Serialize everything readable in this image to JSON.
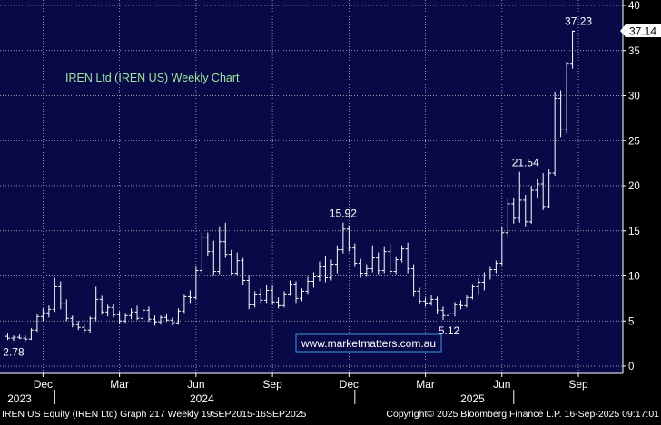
{
  "chart_data": {
    "type": "ohlc",
    "title": "IREN Ltd (IREN US) Weekly Chart",
    "watermark": "www.marketmatters.com.au",
    "footer_left": "IREN US Equity (IREN Ltd) Graph 217  Weekly 19SEP2015-16SEP2025",
    "footer_right": "Copyright© 2025 Bloomberg Finance L.P.    16-Sep-2025 09:17:01",
    "last_price_label": "37.14",
    "y_axis": {
      "min": 0,
      "max": 40,
      "ticks": [
        0,
        5,
        10,
        15,
        20,
        25,
        30,
        35,
        40
      ],
      "side": "right"
    },
    "x_month_labels": [
      {
        "label": "Dec",
        "week": 6
      },
      {
        "label": "Mar",
        "week": 19
      },
      {
        "label": "Jun",
        "week": 32
      },
      {
        "label": "Sep",
        "week": 45
      },
      {
        "label": "Dec",
        "week": 58
      },
      {
        "label": "Mar",
        "week": 71
      },
      {
        "label": "Jun",
        "week": 84
      },
      {
        "label": "Sep",
        "week": 97
      }
    ],
    "x_year_labels": [
      {
        "label": "2023",
        "week": 2
      },
      {
        "label": "2024",
        "week": 33
      },
      {
        "label": "2025",
        "week": 79
      }
    ],
    "year_dividers": [
      8,
      59,
      86
    ],
    "annotations": [
      {
        "text": "2.78",
        "week": 1,
        "value": 2.78,
        "pos": "below"
      },
      {
        "text": "15.92",
        "week": 57,
        "value": 15.92,
        "pos": "above"
      },
      {
        "text": "5.12",
        "week": 75,
        "value": 5.12,
        "pos": "below"
      },
      {
        "text": "21.54",
        "week": 88,
        "value": 21.54,
        "pos": "above"
      },
      {
        "text": "37.23",
        "week": 97,
        "value": 37.23,
        "pos": "above"
      }
    ],
    "colors": {
      "background": "#090947",
      "grid": "#c8c8c8",
      "bars": "#ffffff",
      "title": "#9ee69e",
      "watermark_border": "#3a9ad9",
      "last_price_bg": "#ffffff",
      "axis_area": "#000000"
    },
    "series": [
      {
        "values": [
          [
            3.3,
            3.6,
            2.9,
            3.1
          ],
          [
            3.1,
            3.4,
            2.8,
            3.2
          ],
          [
            3.2,
            3.5,
            3.0,
            3.1
          ],
          [
            3.1,
            3.4,
            2.78,
            3.0
          ],
          [
            3.0,
            4.2,
            2.9,
            4.0
          ],
          [
            4.0,
            5.8,
            3.8,
            5.5
          ],
          [
            5.5,
            6.4,
            5.0,
            5.9
          ],
          [
            5.9,
            6.7,
            5.4,
            6.3
          ],
          [
            6.3,
            9.8,
            6.0,
            8.8
          ],
          [
            8.8,
            9.4,
            6.3,
            6.9
          ],
          [
            6.9,
            7.4,
            5.0,
            5.3
          ],
          [
            5.3,
            5.6,
            4.3,
            4.6
          ],
          [
            4.6,
            5.0,
            4.0,
            4.3
          ],
          [
            4.3,
            4.7,
            3.6,
            4.0
          ],
          [
            4.0,
            5.5,
            3.7,
            5.3
          ],
          [
            5.3,
            8.8,
            5.0,
            7.4
          ],
          [
            7.4,
            7.8,
            5.7,
            6.0
          ],
          [
            6.0,
            6.8,
            5.5,
            6.5
          ],
          [
            6.5,
            6.9,
            5.4,
            5.7
          ],
          [
            5.7,
            6.1,
            4.7,
            5.0
          ],
          [
            5.0,
            5.9,
            4.8,
            5.6
          ],
          [
            5.6,
            6.4,
            5.2,
            6.0
          ],
          [
            6.0,
            6.7,
            5.1,
            5.3
          ],
          [
            5.3,
            6.7,
            5.1,
            6.2
          ],
          [
            6.2,
            6.6,
            4.9,
            5.2
          ],
          [
            5.2,
            5.6,
            4.5,
            4.9
          ],
          [
            4.9,
            5.6,
            4.6,
            5.4
          ],
          [
            5.4,
            5.8,
            4.9,
            5.1
          ],
          [
            5.1,
            5.4,
            4.5,
            4.8
          ],
          [
            4.8,
            6.4,
            4.6,
            6.1
          ],
          [
            6.1,
            8.0,
            5.9,
            7.7
          ],
          [
            7.7,
            8.4,
            7.0,
            7.6
          ],
          [
            7.6,
            11.0,
            7.4,
            10.6
          ],
          [
            10.6,
            14.8,
            10.2,
            14.3
          ],
          [
            14.3,
            14.8,
            12.2,
            12.7
          ],
          [
            12.7,
            13.9,
            10.0,
            10.5
          ],
          [
            10.5,
            15.5,
            10.2,
            13.8
          ],
          [
            13.8,
            15.9,
            12.0,
            12.4
          ],
          [
            12.4,
            12.9,
            10.0,
            10.3
          ],
          [
            10.3,
            12.6,
            10.0,
            11.7
          ],
          [
            11.7,
            12.0,
            9.0,
            9.5
          ],
          [
            9.5,
            10.0,
            6.3,
            6.8
          ],
          [
            6.8,
            8.3,
            6.5,
            8.0
          ],
          [
            8.0,
            8.6,
            7.0,
            7.3
          ],
          [
            7.3,
            9.0,
            7.0,
            8.4
          ],
          [
            8.4,
            8.9,
            6.8,
            7.1
          ],
          [
            7.1,
            7.6,
            6.4,
            6.7
          ],
          [
            6.7,
            8.3,
            6.5,
            8.0
          ],
          [
            8.0,
            9.5,
            7.8,
            9.1
          ],
          [
            9.1,
            9.4,
            7.0,
            7.5
          ],
          [
            7.5,
            8.6,
            7.2,
            8.3
          ],
          [
            8.3,
            9.9,
            8.0,
            9.4
          ],
          [
            9.4,
            10.4,
            8.7,
            9.9
          ],
          [
            9.9,
            11.6,
            9.4,
            11.0
          ],
          [
            11.0,
            12.2,
            9.3,
            9.8
          ],
          [
            9.8,
            11.8,
            9.5,
            11.3
          ],
          [
            11.3,
            13.4,
            10.3,
            12.9
          ],
          [
            12.9,
            15.92,
            12.5,
            15.2
          ],
          [
            15.2,
            15.6,
            12.7,
            13.1
          ],
          [
            13.1,
            13.6,
            11.0,
            11.4
          ],
          [
            11.4,
            11.9,
            9.8,
            10.3
          ],
          [
            10.3,
            11.3,
            9.9,
            10.8
          ],
          [
            10.8,
            13.4,
            10.4,
            12.0
          ],
          [
            12.0,
            12.6,
            10.2,
            10.6
          ],
          [
            10.6,
            13.2,
            10.3,
            12.7
          ],
          [
            12.7,
            13.6,
            10.0,
            10.5
          ],
          [
            10.5,
            12.1,
            10.2,
            11.8
          ],
          [
            11.8,
            13.4,
            11.5,
            13.0
          ],
          [
            13.0,
            13.7,
            10.3,
            10.8
          ],
          [
            10.8,
            11.3,
            7.7,
            8.3
          ],
          [
            8.3,
            8.7,
            6.9,
            7.2
          ],
          [
            7.2,
            7.6,
            6.6,
            7.0
          ],
          [
            7.0,
            7.9,
            6.7,
            7.4
          ],
          [
            7.4,
            7.7,
            5.8,
            6.2
          ],
          [
            6.2,
            6.6,
            5.12,
            5.6
          ],
          [
            5.6,
            6.0,
            5.2,
            5.8
          ],
          [
            5.8,
            7.1,
            5.5,
            6.8
          ],
          [
            6.8,
            7.3,
            6.3,
            6.7
          ],
          [
            6.7,
            7.9,
            6.5,
            7.6
          ],
          [
            7.6,
            9.1,
            7.4,
            8.8
          ],
          [
            8.8,
            9.8,
            8.0,
            9.3
          ],
          [
            9.3,
            10.4,
            8.4,
            10.1
          ],
          [
            10.1,
            11.0,
            9.6,
            10.7
          ],
          [
            10.7,
            11.7,
            10.3,
            11.4
          ],
          [
            11.4,
            15.4,
            11.2,
            14.8
          ],
          [
            14.8,
            18.6,
            14.2,
            18.0
          ],
          [
            18.0,
            18.7,
            15.8,
            16.4
          ],
          [
            16.4,
            21.54,
            15.9,
            18.4
          ],
          [
            18.4,
            19.0,
            15.5,
            16.0
          ],
          [
            16.0,
            20.0,
            15.8,
            19.5
          ],
          [
            19.5,
            20.7,
            18.6,
            20.2
          ],
          [
            20.2,
            21.4,
            17.3,
            17.7
          ],
          [
            17.7,
            21.8,
            17.5,
            21.4
          ],
          [
            21.4,
            30.4,
            21.1,
            29.7
          ],
          [
            29.7,
            30.6,
            25.4,
            26.2
          ],
          [
            26.2,
            33.8,
            25.8,
            33.5
          ],
          [
            33.5,
            37.23,
            33.0,
            37.14
          ]
        ]
      }
    ]
  }
}
